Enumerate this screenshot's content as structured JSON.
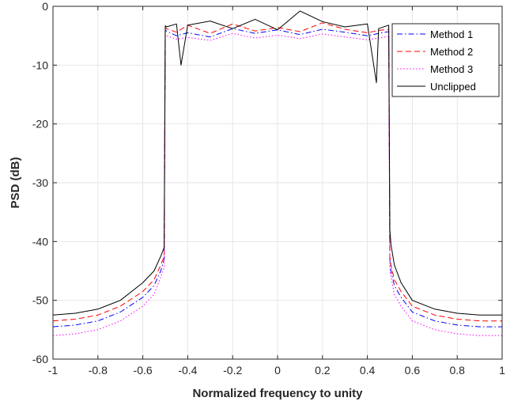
{
  "chart_data": {
    "type": "line",
    "title": "",
    "xlabel": "Normalized frequency to unity",
    "ylabel": "PSD (dB)",
    "xlim": [
      -1,
      1
    ],
    "ylim": [
      -60,
      0
    ],
    "xticks": [
      -1,
      -0.8,
      -0.6,
      -0.4,
      -0.2,
      0,
      0.2,
      0.4,
      0.6,
      0.8,
      1
    ],
    "xtick_labels": [
      "-1",
      "-0.8",
      "-0.6",
      "-0.4",
      "-0.2",
      "0",
      "0.2",
      "0.4",
      "0.6",
      "0.8",
      "1"
    ],
    "yticks": [
      -60,
      -50,
      -40,
      -30,
      -20,
      -10,
      0
    ],
    "ytick_labels": [
      "-60",
      "-50",
      "-40",
      "-30",
      "-20",
      "-10",
      "0"
    ],
    "grid": true,
    "legend_position": "top-right",
    "series": [
      {
        "name": "Method 1",
        "color": "#0000ff",
        "dash": "dash-dot",
        "x": [
          -1,
          -0.9,
          -0.8,
          -0.7,
          -0.6,
          -0.55,
          -0.52,
          -0.505,
          -0.5,
          -0.495,
          -0.45,
          -0.4,
          -0.3,
          -0.2,
          -0.1,
          0,
          0.1,
          0.2,
          0.3,
          0.4,
          0.45,
          0.495,
          0.5,
          0.505,
          0.52,
          0.55,
          0.6,
          0.7,
          0.8,
          0.9,
          1
        ],
        "y": [
          -54.5,
          -54.2,
          -53.5,
          -52.0,
          -49.5,
          -47.5,
          -45.0,
          -43.0,
          -4.0,
          -4.2,
          -5.0,
          -4.5,
          -5.2,
          -3.8,
          -4.6,
          -4.0,
          -4.8,
          -3.9,
          -4.4,
          -5.0,
          -4.6,
          -4.3,
          -43.0,
          -45.0,
          -47.5,
          -49.5,
          -52.0,
          -53.5,
          -54.2,
          -54.5,
          -54.5
        ]
      },
      {
        "name": "Method 2",
        "color": "#ff0000",
        "dash": "dashed",
        "x": [
          -1,
          -0.9,
          -0.8,
          -0.7,
          -0.6,
          -0.55,
          -0.52,
          -0.505,
          -0.5,
          -0.495,
          -0.45,
          -0.4,
          -0.3,
          -0.2,
          -0.1,
          0,
          0.1,
          0.2,
          0.3,
          0.4,
          0.45,
          0.495,
          0.5,
          0.505,
          0.52,
          0.55,
          0.6,
          0.7,
          0.8,
          0.9,
          1
        ],
        "y": [
          -53.5,
          -53.2,
          -52.5,
          -51.0,
          -48.5,
          -46.5,
          -44.0,
          -42.5,
          -3.6,
          -3.8,
          -4.4,
          -3.2,
          -4.6,
          -3.0,
          -4.2,
          -3.6,
          -4.3,
          -2.8,
          -3.9,
          -4.5,
          -4.1,
          -3.9,
          -42.5,
          -44.0,
          -46.5,
          -48.5,
          -51.0,
          -52.5,
          -53.2,
          -53.5,
          -53.5
        ]
      },
      {
        "name": "Method 3",
        "color": "#ff00ff",
        "dash": "dotted",
        "x": [
          -1,
          -0.9,
          -0.8,
          -0.7,
          -0.6,
          -0.55,
          -0.52,
          -0.505,
          -0.5,
          -0.495,
          -0.45,
          -0.4,
          -0.3,
          -0.2,
          -0.1,
          0,
          0.1,
          0.2,
          0.3,
          0.4,
          0.45,
          0.495,
          0.5,
          0.505,
          0.52,
          0.55,
          0.6,
          0.7,
          0.8,
          0.9,
          1
        ],
        "y": [
          -56.0,
          -55.7,
          -55.0,
          -53.5,
          -51.0,
          -49.0,
          -46.0,
          -44.5,
          -4.8,
          -5.0,
          -5.6,
          -5.3,
          -5.8,
          -4.6,
          -5.4,
          -4.9,
          -5.5,
          -4.7,
          -5.2,
          -5.7,
          -5.4,
          -5.1,
          -44.5,
          -46.0,
          -49.0,
          -51.0,
          -53.5,
          -55.0,
          -55.7,
          -56.0,
          -56.0
        ]
      },
      {
        "name": "Unclipped",
        "color": "#000000",
        "dash": "solid",
        "x": [
          -1,
          -0.9,
          -0.8,
          -0.7,
          -0.6,
          -0.55,
          -0.52,
          -0.505,
          -0.5,
          -0.495,
          -0.45,
          -0.43,
          -0.4,
          -0.3,
          -0.2,
          -0.1,
          0,
          0.1,
          0.2,
          0.3,
          0.4,
          0.44,
          0.45,
          0.495,
          0.5,
          0.505,
          0.52,
          0.55,
          0.6,
          0.7,
          0.8,
          0.9,
          1
        ],
        "y": [
          -52.5,
          -52.2,
          -51.5,
          -50.0,
          -47.0,
          -45.0,
          -42.5,
          -41.0,
          -3.3,
          -3.5,
          -3.0,
          -10.0,
          -3.2,
          -2.5,
          -3.8,
          -2.2,
          -4.0,
          -0.8,
          -2.6,
          -3.5,
          -3.0,
          -13.0,
          -3.8,
          -3.2,
          -38.0,
          -40.5,
          -44.0,
          -47.0,
          -50.0,
          -51.5,
          -52.2,
          -52.5,
          -52.5
        ]
      }
    ]
  }
}
